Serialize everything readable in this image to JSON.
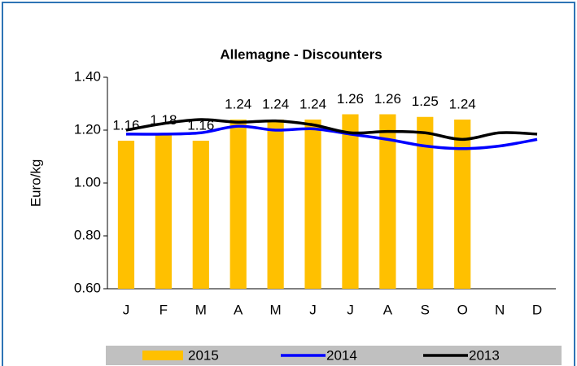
{
  "chart_data": {
    "type": "bar_line",
    "title": "Allemagne - Discounters",
    "y_label": "Euro/kg",
    "categories": [
      "J",
      "F",
      "M",
      "A",
      "M",
      "J",
      "J",
      "A",
      "S",
      "O",
      "N",
      "D"
    ],
    "series": [
      {
        "name": "2015",
        "type": "bar",
        "color": "#ffc000",
        "values": [
          1.16,
          1.18,
          1.16,
          1.24,
          1.24,
          1.24,
          1.26,
          1.26,
          1.25,
          1.24,
          null,
          null
        ]
      },
      {
        "name": "2014",
        "type": "line",
        "color": "#0000ff",
        "values": [
          1.185,
          1.185,
          1.19,
          1.215,
          1.2,
          1.205,
          1.185,
          1.165,
          1.14,
          1.13,
          1.14,
          1.165
        ]
      },
      {
        "name": "2013",
        "type": "line",
        "color": "#000000",
        "values": [
          1.2,
          1.225,
          1.24,
          1.23,
          1.235,
          1.22,
          1.19,
          1.195,
          1.19,
          1.165,
          1.19,
          1.185
        ]
      }
    ],
    "ylim": [
      0.6,
      1.4
    ],
    "yticks": [
      {
        "value": 0.6,
        "label": "0.60"
      },
      {
        "value": 0.8,
        "label": "0.80"
      },
      {
        "value": 1.0,
        "label": "1.00"
      },
      {
        "value": 1.2,
        "label": "1.20"
      },
      {
        "value": 1.4,
        "label": "1.40"
      }
    ],
    "legend": "bottom"
  }
}
